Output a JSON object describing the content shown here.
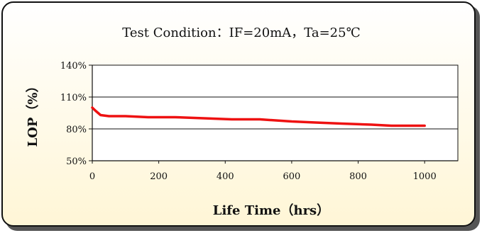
{
  "chart_data": {
    "type": "line",
    "title": "Test Condition：IF=20mA，Ta=25℃",
    "xlabel": "Life Time（hrs）",
    "ylabel": "LOP（%）",
    "x_ticks": [
      "0",
      "200",
      "400",
      "600",
      "800",
      "1000"
    ],
    "y_ticks": [
      "140%",
      "110%",
      "80%",
      "50%"
    ],
    "xlim": [
      0,
      1100
    ],
    "ylim": [
      50,
      140
    ],
    "grid": "horizontal",
    "series": [
      {
        "color": "#ee1111",
        "x": [
          0,
          10,
          25,
          50,
          100,
          168,
          250,
          336,
          420,
          504,
          600,
          672,
          750,
          840,
          900,
          1000
        ],
        "y": [
          100,
          97,
          93,
          92,
          92,
          91,
          91,
          90,
          89,
          89,
          87,
          86,
          85,
          84,
          83,
          83
        ]
      }
    ]
  },
  "colors": {
    "panel_bg": "#fffce6",
    "plot_bg": "#ffffff",
    "border": "#111111",
    "line": "#ee1111"
  }
}
